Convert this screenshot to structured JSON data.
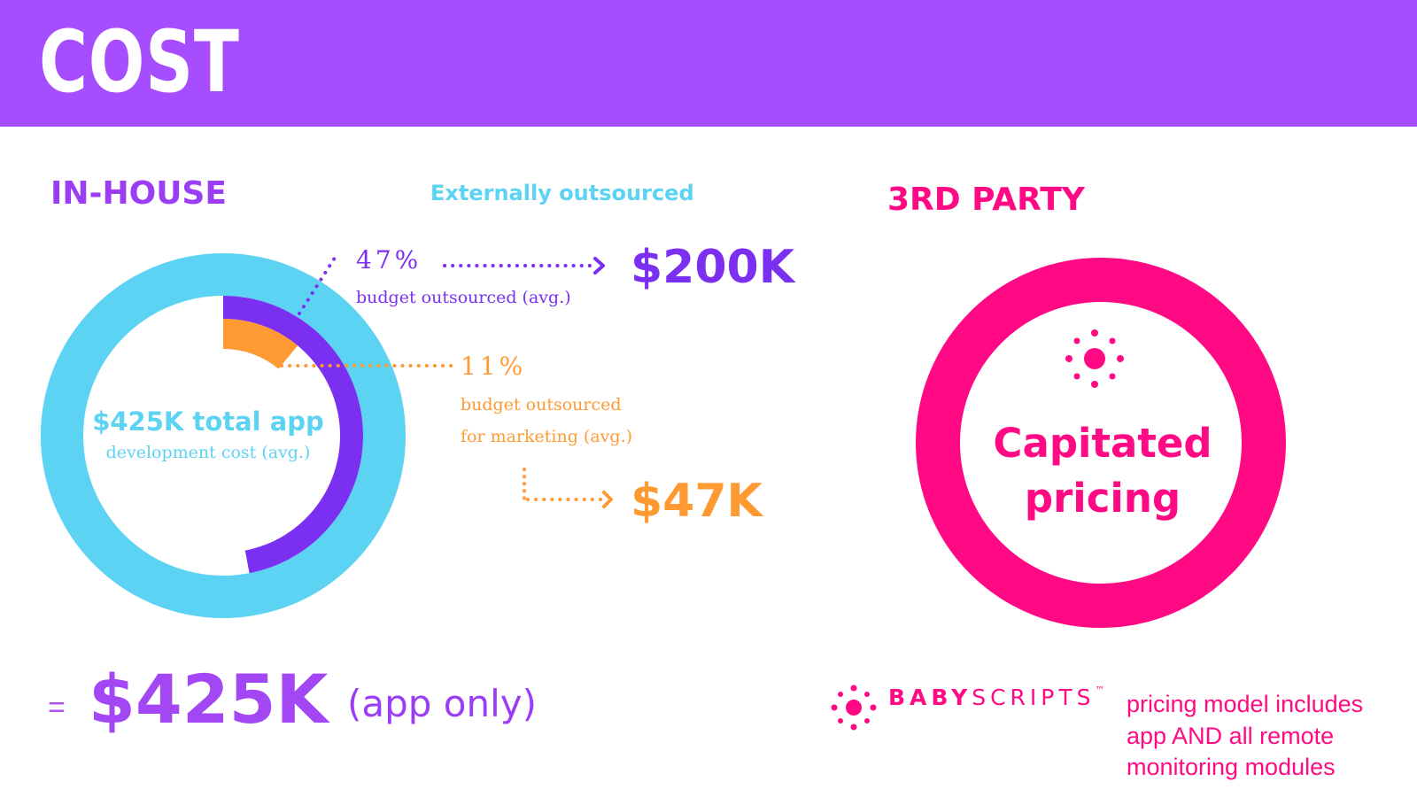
{
  "header": {
    "title": "COST",
    "bg_color": "#a54dff"
  },
  "sections": {
    "in_house": "IN-HOUSE",
    "external": "Externally outsourced",
    "third_party": "3RD PARTY"
  },
  "in_house": {
    "center_line1": "$425K total app",
    "center_line2": "development cost (avg.)",
    "total_prefix": "=",
    "total_value": "$425K",
    "total_note": "(app only)"
  },
  "outsourced": {
    "pct_label": "47%",
    "pct_desc": "budget outsourced (avg.)",
    "amount": "$200K"
  },
  "marketing": {
    "pct_label": "11%",
    "desc_line1": "budget outsourced",
    "desc_line2": "for marketing (avg.)",
    "amount": "$47K"
  },
  "third_party": {
    "ring_text_line1": "Capitated",
    "ring_text_line2": "pricing",
    "brand_name_bold": "BABY",
    "brand_name_light": "SCRIPTS",
    "brand_tm": "™",
    "note_lines": [
      "pricing model includes",
      "app AND all remote",
      "monitoring modules"
    ]
  },
  "chart_data": {
    "type": "pie",
    "variant": "donut",
    "total_label": "$425K total app development cost (avg.)",
    "total": 425,
    "slices": [
      {
        "label": "budget outsourced (avg.)",
        "percent": 47,
        "value_label": "$200K",
        "color": "#7b2ff0"
      },
      {
        "label": "budget outsourced for marketing (avg.)",
        "percent": 11,
        "value_label": "$47K",
        "color": "#ff9a33"
      }
    ],
    "base_color": "#5cd3f2"
  },
  "colors": {
    "purple": "#a54dff",
    "dark_purple": "#7b2ff0",
    "cyan": "#5cd3f2",
    "orange": "#ff9a33",
    "pink": "#ff0a84"
  },
  "icons": [
    "arrow-right-icon",
    "babyscripts-logo-icon"
  ]
}
